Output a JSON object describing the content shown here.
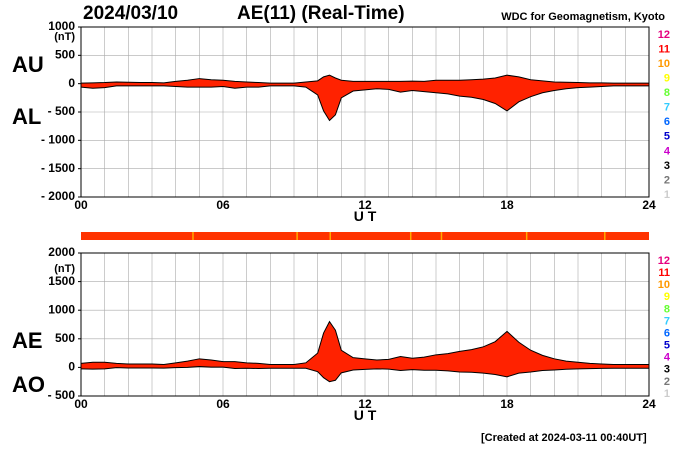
{
  "header": {
    "date": "2024/03/10",
    "title": "AE(11) (Real-Time)",
    "source": "WDC for Geomagnetism, Kyoto"
  },
  "footer": "[Created at 2024-03-11 00:40UT]",
  "colors": {
    "fill": "#ff2200",
    "outline": "#000000",
    "grid": "#aaaaaa",
    "station_bar_base": "#ff3300",
    "station_bar_accent": "#ffaa00"
  },
  "station_legend": [
    {
      "label": "12",
      "color": "#e6007e"
    },
    {
      "label": "11",
      "color": "#ff0000"
    },
    {
      "label": "10",
      "color": "#ff9900"
    },
    {
      "label": "9",
      "color": "#ffff00"
    },
    {
      "label": "8",
      "color": "#66ff33"
    },
    {
      "label": "7",
      "color": "#33ccff"
    },
    {
      "label": "6",
      "color": "#0066ff"
    },
    {
      "label": "5",
      "color": "#0000cc"
    },
    {
      "label": "4",
      "color": "#cc00cc"
    },
    {
      "label": "3",
      "color": "#000000"
    },
    {
      "label": "2",
      "color": "#777777"
    },
    {
      "label": "1",
      "color": "#cccccc"
    }
  ],
  "chart_data": [
    {
      "type": "area",
      "series_labels": [
        "AU",
        "AL"
      ],
      "unit": "(nT)",
      "xlabel": "U T",
      "x_ticks": [
        "00",
        "06",
        "12",
        "18",
        "24"
      ],
      "xlim": [
        0,
        24
      ],
      "ylim": [
        -2000,
        1000
      ],
      "y_tick_values": [
        1000,
        500,
        0,
        -500,
        -1000,
        -1500,
        -2000
      ],
      "y_tick_labels": [
        "1000",
        "500",
        "0",
        "- 500",
        "- 1000",
        "- 1500",
        "- 2000"
      ],
      "grid": true,
      "x": [
        0,
        0.5,
        1,
        1.5,
        2,
        2.5,
        3,
        3.5,
        4,
        4.5,
        5,
        5.5,
        6,
        6.5,
        7,
        7.5,
        8,
        8.5,
        9,
        9.5,
        10,
        10.25,
        10.5,
        10.75,
        11,
        11.5,
        12,
        12.5,
        13,
        13.5,
        14,
        14.5,
        15,
        15.5,
        16,
        16.5,
        17,
        17.5,
        18,
        18.5,
        19,
        19.5,
        20,
        20.5,
        21,
        21.5,
        22,
        22.5,
        23,
        23.5,
        24
      ],
      "upper": [
        10,
        15,
        20,
        30,
        25,
        20,
        20,
        15,
        40,
        60,
        90,
        70,
        60,
        40,
        30,
        20,
        10,
        10,
        10,
        30,
        50,
        120,
        150,
        100,
        60,
        40,
        40,
        40,
        40,
        40,
        45,
        40,
        60,
        60,
        60,
        70,
        80,
        100,
        150,
        120,
        70,
        50,
        30,
        25,
        20,
        15,
        15,
        10,
        10,
        10,
        10
      ],
      "lower": [
        -60,
        -80,
        -70,
        -40,
        -40,
        -40,
        -40,
        -40,
        -50,
        -60,
        -60,
        -60,
        -50,
        -80,
        -60,
        -60,
        -40,
        -40,
        -40,
        -60,
        -200,
        -480,
        -650,
        -550,
        -250,
        -130,
        -110,
        -90,
        -100,
        -150,
        -120,
        -140,
        -160,
        -180,
        -220,
        -240,
        -280,
        -350,
        -480,
        -320,
        -230,
        -160,
        -120,
        -90,
        -70,
        -60,
        -50,
        -40,
        -40,
        -40,
        -40
      ]
    },
    {
      "type": "area",
      "series_labels": [
        "AE",
        "AO"
      ],
      "unit": "(nT)",
      "xlabel": "U T",
      "x_ticks": [
        "00",
        "06",
        "12",
        "18",
        "24"
      ],
      "xlim": [
        0,
        24
      ],
      "ylim": [
        -500,
        2000
      ],
      "y_tick_values": [
        2000,
        1500,
        1000,
        500,
        0,
        -500
      ],
      "y_tick_labels": [
        "2000",
        "1500",
        "1000",
        "500",
        "0",
        "- 500"
      ],
      "grid": true,
      "x": [
        0,
        0.5,
        1,
        1.5,
        2,
        2.5,
        3,
        3.5,
        4,
        4.5,
        5,
        5.5,
        6,
        6.5,
        7,
        7.5,
        8,
        8.5,
        9,
        9.5,
        10,
        10.25,
        10.5,
        10.75,
        11,
        11.5,
        12,
        12.5,
        13,
        13.5,
        14,
        14.5,
        15,
        15.5,
        16,
        16.5,
        17,
        17.5,
        18,
        18.5,
        19,
        19.5,
        20,
        20.5,
        21,
        21.5,
        22,
        22.5,
        23,
        23.5,
        24
      ],
      "upper": [
        70,
        90,
        90,
        70,
        60,
        60,
        60,
        50,
        80,
        110,
        150,
        130,
        100,
        100,
        80,
        70,
        50,
        50,
        50,
        80,
        250,
        600,
        800,
        650,
        300,
        170,
        150,
        130,
        140,
        190,
        160,
        180,
        220,
        240,
        280,
        310,
        360,
        450,
        630,
        440,
        300,
        210,
        150,
        110,
        90,
        70,
        60,
        50,
        50,
        50,
        50
      ],
      "lower": [
        -25,
        -30,
        -25,
        -5,
        -10,
        -10,
        -10,
        -12,
        -5,
        0,
        15,
        5,
        5,
        -20,
        -15,
        -20,
        -15,
        -15,
        -15,
        -15,
        -75,
        -180,
        -250,
        -225,
        -95,
        -45,
        -35,
        -25,
        -30,
        -55,
        -38,
        -50,
        -50,
        -60,
        -80,
        -85,
        -100,
        -125,
        -165,
        -100,
        -80,
        -55,
        -45,
        -32,
        -25,
        -22,
        -18,
        -15,
        -15,
        -15,
        -15
      ]
    }
  ]
}
